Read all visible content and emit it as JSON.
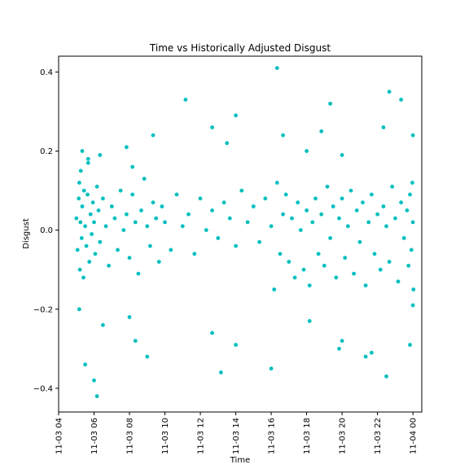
{
  "chart_data": {
    "type": "scatter",
    "title": "Time vs Historically Adjusted Disgust",
    "xlabel": "Time",
    "ylabel": "Disgust",
    "x_ticks": [
      "11-03 04",
      "11-03 06",
      "11-03 08",
      "11-03 10",
      "11-03 12",
      "11-03 14",
      "11-03 16",
      "11-03 18",
      "11-03 20",
      "11-03 22",
      "11-04 00"
    ],
    "y_ticks": [
      "−0.4",
      "−0.2",
      "0.0",
      "0.2",
      "0.4"
    ],
    "xlim": [
      "2016-11-03T04:00",
      "2016-11-04T00:30"
    ],
    "ylim": [
      -0.46,
      0.44
    ],
    "grid": false,
    "color": "#00bfbf",
    "series": [
      {
        "x": [
          "2016-11-03T05:00",
          "2016-11-03T05:04",
          "2016-11-03T05:08",
          "2016-11-03T05:10",
          "2016-11-03T05:12",
          "2016-11-03T05:14",
          "2016-11-03T05:15",
          "2016-11-03T05:18",
          "2016-11-03T05:20",
          "2016-11-03T05:24",
          "2016-11-03T05:26",
          "2016-11-03T05:30",
          "2016-11-03T05:34",
          "2016-11-03T05:38",
          "2016-11-03T05:40",
          "2016-11-03T05:44",
          "2016-11-03T05:48",
          "2016-11-03T05:52",
          "2016-11-03T05:56",
          "2016-11-03T06:00",
          "2016-11-03T06:04",
          "2016-11-03T06:10",
          "2016-11-03T06:15",
          "2016-11-03T06:20",
          "2016-11-03T06:30",
          "2016-11-03T06:40",
          "2016-11-03T06:50",
          "2016-11-03T07:00",
          "2016-11-03T07:10",
          "2016-11-03T07:20",
          "2016-11-03T07:30",
          "2016-11-03T07:40",
          "2016-11-03T07:50",
          "2016-11-03T08:00",
          "2016-11-03T08:10",
          "2016-11-03T08:20",
          "2016-11-03T08:30",
          "2016-11-03T08:40",
          "2016-11-03T08:50",
          "2016-11-03T09:00",
          "2016-11-03T09:10",
          "2016-11-03T09:20",
          "2016-11-03T09:30",
          "2016-11-03T09:40",
          "2016-11-03T09:50",
          "2016-11-03T10:00",
          "2016-11-03T10:20",
          "2016-11-03T10:40",
          "2016-11-03T11:00",
          "2016-11-03T11:20",
          "2016-11-03T11:40",
          "2016-11-03T12:00",
          "2016-11-03T12:20",
          "2016-11-03T12:40",
          "2016-11-03T13:00",
          "2016-11-03T13:20",
          "2016-11-03T13:40",
          "2016-11-03T14:00",
          "2016-11-03T14:20",
          "2016-11-03T14:40",
          "2016-11-03T15:00",
          "2016-11-03T15:20",
          "2016-11-03T15:40",
          "2016-11-03T16:00",
          "2016-11-03T16:10",
          "2016-11-03T16:20",
          "2016-11-03T16:30",
          "2016-11-03T16:40",
          "2016-11-03T16:50",
          "2016-11-03T17:00",
          "2016-11-03T17:10",
          "2016-11-03T17:20",
          "2016-11-03T17:30",
          "2016-11-03T17:40",
          "2016-11-03T17:50",
          "2016-11-03T18:00",
          "2016-11-03T18:10",
          "2016-11-03T18:20",
          "2016-11-03T18:30",
          "2016-11-03T18:40",
          "2016-11-03T18:50",
          "2016-11-03T19:00",
          "2016-11-03T19:10",
          "2016-11-03T19:20",
          "2016-11-03T19:30",
          "2016-11-03T19:40",
          "2016-11-03T19:50",
          "2016-11-03T20:00",
          "2016-11-03T20:10",
          "2016-11-03T20:20",
          "2016-11-03T20:30",
          "2016-11-03T20:40",
          "2016-11-03T20:50",
          "2016-11-03T21:00",
          "2016-11-03T21:10",
          "2016-11-03T21:20",
          "2016-11-03T21:30",
          "2016-11-03T21:40",
          "2016-11-03T21:50",
          "2016-11-03T22:00",
          "2016-11-03T22:10",
          "2016-11-03T22:20",
          "2016-11-03T22:30",
          "2016-11-03T22:40",
          "2016-11-03T22:50",
          "2016-11-03T23:00",
          "2016-11-03T23:10",
          "2016-11-03T23:20",
          "2016-11-03T23:30",
          "2016-11-03T23:40",
          "2016-11-03T23:45",
          "2016-11-03T23:50",
          "2016-11-03T23:55",
          "2016-11-03T23:58",
          "2016-11-04T00:00",
          "2016-11-04T00:02",
          "2016-11-03T05:20",
          "2016-11-03T05:40",
          "2016-11-03T06:20",
          "2016-11-03T07:50",
          "2016-11-03T08:10",
          "2016-11-03T09:20",
          "2016-11-03T11:10",
          "2016-11-03T12:40",
          "2016-11-03T13:30",
          "2016-11-03T14:00",
          "2016-11-03T16:20",
          "2016-11-03T16:40",
          "2016-11-03T18:00",
          "2016-11-03T18:50",
          "2016-11-03T19:20",
          "2016-11-03T20:00",
          "2016-11-03T22:20",
          "2016-11-03T22:40",
          "2016-11-03T23:20",
          "2016-11-04T00:00",
          "2016-11-03T05:10",
          "2016-11-03T05:30",
          "2016-11-03T06:00",
          "2016-11-03T06:10",
          "2016-11-03T06:30",
          "2016-11-03T08:00",
          "2016-11-03T08:20",
          "2016-11-03T09:00",
          "2016-11-03T12:40",
          "2016-11-03T13:10",
          "2016-11-03T14:00",
          "2016-11-03T16:00",
          "2016-11-03T18:10",
          "2016-11-03T19:50",
          "2016-11-03T20:00",
          "2016-11-03T21:20",
          "2016-11-03T21:40",
          "2016-11-03T22:30",
          "2016-11-03T23:50",
          "2016-11-04T00:00"
        ],
        "y": [
          0.03,
          -0.05,
          0.08,
          0.12,
          -0.1,
          0.02,
          0.15,
          -0.02,
          0.06,
          -0.12,
          0.1,
          0.01,
          -0.04,
          0.09,
          0.18,
          -0.08,
          0.04,
          -0.01,
          0.07,
          0.02,
          -0.06,
          0.11,
          0.05,
          -0.03,
          0.08,
          0.01,
          -0.09,
          0.06,
          0.03,
          -0.05,
          0.1,
          0.0,
          0.04,
          -0.07,
          0.09,
          0.02,
          -0.11,
          0.05,
          0.13,
          0.01,
          -0.04,
          0.07,
          0.03,
          -0.08,
          0.06,
          0.02,
          -0.05,
          0.09,
          0.01,
          0.04,
          -0.06,
          0.08,
          0.0,
          0.05,
          -0.02,
          0.07,
          0.03,
          -0.04,
          0.1,
          0.02,
          0.06,
          -0.03,
          0.08,
          0.01,
          -0.15,
          0.12,
          -0.06,
          0.04,
          0.09,
          -0.08,
          0.03,
          -0.12,
          0.07,
          0.0,
          -0.1,
          0.05,
          -0.14,
          0.02,
          0.08,
          -0.06,
          0.04,
          -0.09,
          0.11,
          -0.02,
          0.06,
          -0.12,
          0.03,
          0.08,
          -0.07,
          0.01,
          0.1,
          -0.11,
          0.05,
          -0.03,
          0.07,
          -0.14,
          0.02,
          0.09,
          -0.06,
          0.04,
          -0.1,
          0.06,
          0.01,
          -0.08,
          0.11,
          0.03,
          -0.13,
          0.07,
          -0.02,
          0.05,
          -0.09,
          0.09,
          -0.05,
          0.12,
          0.02,
          -0.15,
          0.2,
          0.17,
          0.19,
          0.21,
          0.16,
          0.24,
          0.33,
          0.26,
          0.22,
          0.29,
          0.41,
          0.24,
          0.2,
          0.25,
          0.32,
          0.19,
          0.26,
          0.35,
          0.33,
          0.24,
          -0.2,
          -0.34,
          -0.38,
          -0.42,
          -0.24,
          -0.22,
          -0.28,
          -0.32,
          -0.26,
          -0.36,
          -0.29,
          -0.35,
          -0.23,
          -0.3,
          -0.28,
          -0.32,
          -0.31,
          -0.37,
          -0.29,
          -0.19
        ]
      }
    ]
  }
}
